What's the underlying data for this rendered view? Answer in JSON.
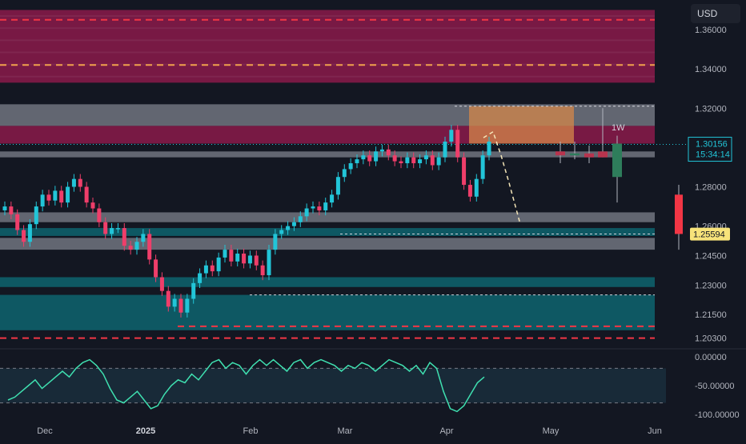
{
  "currency": "USD",
  "price_scale": {
    "ticks": [
      "1.36000",
      "1.34000",
      "1.32000",
      "1.28000",
      "1.26000",
      "1.24500",
      "1.23000",
      "1.21500",
      "1.20300"
    ]
  },
  "price_labels": {
    "current_price": "1.30156",
    "countdown": "15:34:14",
    "weekly_price": "1.25594"
  },
  "timeframe_label": "1W",
  "oscillator_ticks": [
    "0.00000",
    "-50.00000",
    "-100.00000"
  ],
  "time_axis": [
    {
      "label": "Dec",
      "bold": false
    },
    {
      "label": "2025",
      "bold": true
    },
    {
      "label": "Feb",
      "bold": false
    },
    {
      "label": "Mar",
      "bold": false
    },
    {
      "label": "Apr",
      "bold": false
    },
    {
      "label": "May",
      "bold": false
    },
    {
      "label": "Jun",
      "bold": false
    }
  ],
  "colors": {
    "background": "#131722",
    "bull": "#26a69a",
    "bull_candle": "#22c5d8",
    "bear": "#ef3e6a",
    "supply_zone": "#8b1a4a",
    "grey_zone": "#6b6f7a",
    "teal_zone": "#0e5f6a",
    "orange_box": "#d4874a",
    "oscillator": "#3fe0b0",
    "price_label_bg": "#22c5d8",
    "weekly_label_bg": "#f7e37a",
    "weekly_bear": "#f23645"
  },
  "chart_data": {
    "type": "candlestick",
    "ylim": [
      1.2,
      1.371
    ],
    "daily_closes": [
      1.27,
      1.266,
      1.258,
      1.252,
      1.261,
      1.27,
      1.276,
      1.273,
      1.278,
      1.272,
      1.28,
      1.284,
      1.28,
      1.272,
      1.269,
      1.262,
      1.256,
      1.259,
      1.259,
      1.25,
      1.248,
      1.252,
      1.256,
      1.243,
      1.234,
      1.227,
      1.219,
      1.223,
      1.216,
      1.223,
      1.231,
      1.236,
      1.24,
      1.237,
      1.244,
      1.248,
      1.242,
      1.246,
      1.241,
      1.245,
      1.24,
      1.235,
      1.248,
      1.256,
      1.258,
      1.26,
      1.262,
      1.265,
      1.269,
      1.27,
      1.268,
      1.272,
      1.276,
      1.285,
      1.289,
      1.292,
      1.294,
      1.296,
      1.293,
      1.298,
      1.299,
      1.296,
      1.293,
      1.292,
      1.295,
      1.292,
      1.294,
      1.296,
      1.291,
      1.295,
      1.303,
      1.309,
      1.295,
      1.281,
      1.275,
      1.284,
      1.296,
      1.303
    ],
    "weekly_candles": [
      {
        "open": 1.298,
        "high": 1.303,
        "low": 1.292,
        "close": 1.296
      },
      {
        "open": 1.296,
        "high": 1.303,
        "low": 1.294,
        "close": 1.297
      },
      {
        "open": 1.297,
        "high": 1.301,
        "low": 1.292,
        "close": 1.295
      },
      {
        "open": 1.298,
        "high": 1.32,
        "low": 1.295,
        "close": 1.295
      },
      {
        "open": 1.285,
        "high": 1.306,
        "low": 1.272,
        "close": 1.302
      }
    ],
    "current_price": 1.30156,
    "weekly_price": 1.25594,
    "zones": [
      {
        "kind": "supply",
        "from": 1.333,
        "to": 1.37
      },
      {
        "kind": "grey",
        "from": 1.311,
        "to": 1.322
      },
      {
        "kind": "supply",
        "from": 1.302,
        "to": 1.311
      },
      {
        "kind": "grey",
        "from": 1.295,
        "to": 1.298
      },
      {
        "kind": "grey",
        "from": 1.262,
        "to": 1.267
      },
      {
        "kind": "teal",
        "from": 1.255,
        "to": 1.259
      },
      {
        "kind": "grey",
        "from": 1.248,
        "to": 1.254
      },
      {
        "kind": "teal",
        "from": 1.229,
        "to": 1.234
      },
      {
        "kind": "teal",
        "from": 1.207,
        "to": 1.225
      }
    ],
    "dashed_levels": [
      {
        "value": 1.365,
        "color": "red"
      },
      {
        "value": 1.342,
        "color": "orange"
      },
      {
        "value": 1.321,
        "color": "white"
      },
      {
        "value": 1.256,
        "color": "white"
      },
      {
        "value": 1.225,
        "color": "white"
      },
      {
        "value": 1.209,
        "color": "red"
      },
      {
        "value": 1.203,
        "color": "red"
      }
    ],
    "projection_path": [
      1.305,
      1.308,
      1.296,
      1.282,
      1.261
    ],
    "oscillator": {
      "ylim": [
        -100,
        0
      ],
      "levels": [
        -20,
        -80
      ],
      "values": [
        -75,
        -70,
        -60,
        -50,
        -40,
        -55,
        -45,
        -35,
        -25,
        -35,
        -20,
        -10,
        -5,
        -15,
        -30,
        -55,
        -75,
        -80,
        -70,
        -60,
        -75,
        -90,
        -85,
        -65,
        -50,
        -40,
        -45,
        -30,
        -40,
        -25,
        -10,
        -5,
        -20,
        -10,
        -15,
        -30,
        -15,
        -5,
        -15,
        -5,
        -15,
        -25,
        -10,
        -5,
        -20,
        -10,
        -5,
        -10,
        -15,
        -25,
        -15,
        -20,
        -10,
        -15,
        -25,
        -15,
        -5,
        -10,
        -15,
        -25,
        -15,
        -30,
        -10,
        -20,
        -60,
        -90,
        -95,
        -85,
        -65,
        -45,
        -35
      ]
    }
  }
}
